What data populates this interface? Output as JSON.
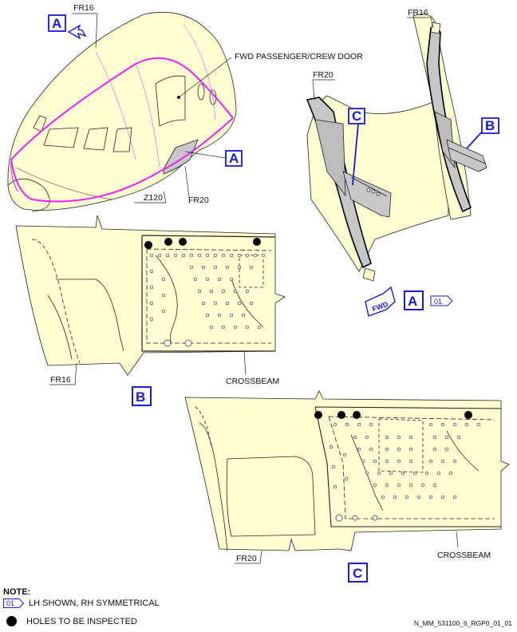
{
  "labels": {
    "fr16": "FR16",
    "fr20": "FR20",
    "z120": "Z120",
    "fwd_door": "FWD PASSENGER/CREW DOOR",
    "crossbeam": "CROSSBEAM",
    "fwd_arrow": "FWD"
  },
  "view_letters": {
    "a": "A",
    "b": "B",
    "c": "C"
  },
  "ref_badge": "01",
  "notes": {
    "title": "NOTE:",
    "item1_text": "LH SHOWN, RH SYMMETRICAL",
    "item2_text": "HOLES TO BE INSPECTED"
  },
  "doc_id": "N_MM_531100_6_RGP0_01_01",
  "colors": {
    "fill": "#ffffd2",
    "grey": "#c7c7c7",
    "blue": "#1a1ad6",
    "magenta": "#ee22ee"
  }
}
